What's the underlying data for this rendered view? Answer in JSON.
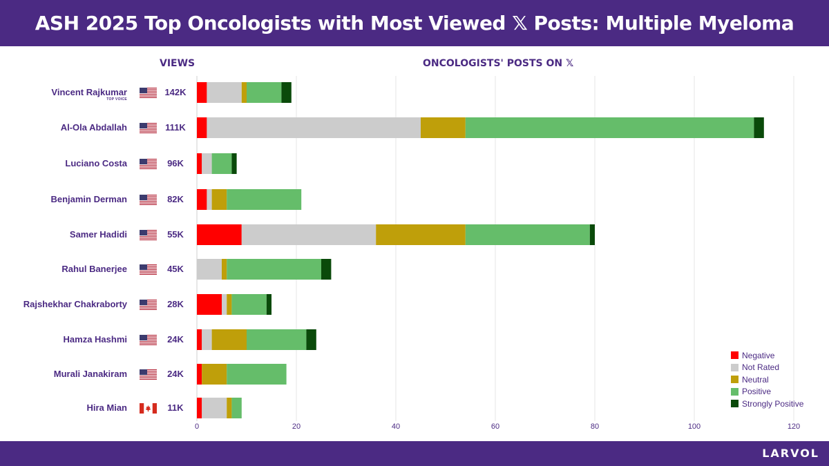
{
  "header": {
    "title": "ASH 2025 Top Oncologists with Most Viewed 𝕏 Posts: Multiple Myeloma"
  },
  "columns": {
    "views_label": "VIEWS",
    "posts_label": "ONCOLOGISTS' POSTS ON 𝕏"
  },
  "footer": {
    "brand": "LARVOL"
  },
  "colors": {
    "brand_purple": "#4b2a83",
    "negative": "#ff0000",
    "not_rated": "#cccccc",
    "neutral": "#bf9f0a",
    "positive": "#65bd6a",
    "strongly_positive": "#0a4a0a"
  },
  "oncologists": [
    {
      "name": "Vincent Rajkumar",
      "badge": "TOP VOICE",
      "country": "US",
      "views": "142K"
    },
    {
      "name": "Al-Ola Abdallah",
      "country": "US",
      "views": "111K"
    },
    {
      "name": "Luciano Costa",
      "country": "US",
      "views": "96K"
    },
    {
      "name": "Benjamin Derman",
      "country": "US",
      "views": "82K"
    },
    {
      "name": "Samer Hadidi",
      "country": "US",
      "views": "55K"
    },
    {
      "name": "Rahul Banerjee",
      "country": "US",
      "views": "45K"
    },
    {
      "name": "Rajshekhar Chakraborty",
      "country": "US",
      "views": "28K"
    },
    {
      "name": "Hamza Hashmi",
      "country": "US",
      "views": "24K"
    },
    {
      "name": "Murali Janakiram",
      "country": "US",
      "views": "24K"
    },
    {
      "name": "Hira Mian",
      "country": "CA",
      "views": "11K"
    }
  ],
  "chart_data": {
    "type": "bar",
    "orientation": "horizontal",
    "stacked": true,
    "title": "ONCOLOGISTS' POSTS ON 𝕏",
    "xlabel": "",
    "ylabel": "",
    "xlim": [
      0,
      120
    ],
    "xticks": [
      0,
      20,
      40,
      60,
      80,
      100,
      120
    ],
    "grid": true,
    "legend_position": "bottom-right",
    "categories": [
      "Vincent Rajkumar",
      "Al-Ola Abdallah",
      "Luciano Costa",
      "Benjamin Derman",
      "Samer Hadidi",
      "Rahul Banerjee",
      "Rajshekhar Chakraborty",
      "Hamza Hashmi",
      "Murali Janakiram",
      "Hira Mian"
    ],
    "series": [
      {
        "name": "Negative",
        "color": "#ff0000",
        "values": [
          2,
          2,
          1,
          2,
          9,
          0,
          5,
          1,
          1,
          1
        ]
      },
      {
        "name": "Not Rated",
        "color": "#cccccc",
        "values": [
          7,
          43,
          2,
          1,
          27,
          5,
          1,
          2,
          0,
          5
        ]
      },
      {
        "name": "Neutral",
        "color": "#bf9f0a",
        "values": [
          1,
          9,
          0,
          3,
          18,
          1,
          1,
          7,
          5,
          1
        ]
      },
      {
        "name": "Positive",
        "color": "#65bd6a",
        "values": [
          7,
          58,
          4,
          15,
          25,
          19,
          7,
          12,
          12,
          2
        ]
      },
      {
        "name": "Strongly Positive",
        "color": "#0a4a0a",
        "values": [
          2,
          2,
          1,
          0,
          1,
          2,
          1,
          2,
          0,
          0
        ]
      }
    ]
  }
}
